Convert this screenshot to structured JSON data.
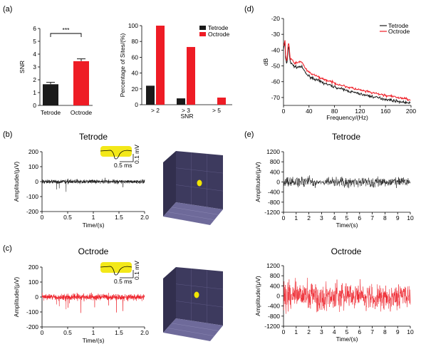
{
  "colors": {
    "tetrode": "#1a1a1a",
    "octrode": "#ee1c25",
    "spike": "#f2e600",
    "cube": "#3d3a5e",
    "cube_floor": "#6e6a9a"
  },
  "panels": {
    "a": "(a)",
    "b": "(b)",
    "c": "(c)",
    "d": "(d)",
    "e": "(e)"
  },
  "chart_data": [
    {
      "id": "a-left",
      "type": "bar",
      "categories": [
        "Tetrode",
        "Octrode"
      ],
      "values": [
        1.65,
        3.45
      ],
      "errors": [
        0.15,
        0.18
      ],
      "ylabel": "SNR",
      "ylim": [
        0,
        6
      ],
      "yticks": [
        0,
        1,
        2,
        3,
        4,
        5,
        6
      ],
      "significance": "***"
    },
    {
      "id": "a-right",
      "type": "bar",
      "categories": [
        "> 2",
        "> 3",
        "> 5"
      ],
      "series": [
        {
          "name": "Tetrode",
          "values": [
            24,
            8,
            0
          ]
        },
        {
          "name": "Octrode",
          "values": [
            100,
            73,
            9
          ]
        }
      ],
      "xlabel": "SNR",
      "ylabel": "Percentage of Sites/(%)",
      "ylim": [
        0,
        100
      ],
      "yticks": [
        0,
        20,
        40,
        60,
        80,
        100
      ],
      "legend": "top-right"
    },
    {
      "id": "d",
      "type": "line",
      "series": [
        {
          "name": "Tetrode"
        },
        {
          "name": "Octrode"
        }
      ],
      "xlabel": "Frequency/(Hz)",
      "ylabel": "dB",
      "xlim": [
        0,
        200
      ],
      "ylim": [
        -75,
        -20
      ],
      "xticks": [
        0,
        40,
        80,
        120,
        160,
        200
      ],
      "yticks": [
        -20,
        -30,
        -40,
        -50,
        -60,
        -70
      ],
      "legend": "top-right"
    },
    {
      "id": "b",
      "type": "line",
      "title": "Tetrode",
      "xlabel": "Time/(s)",
      "ylabel": "Amplitude/(μV)",
      "xlim": [
        0,
        2
      ],
      "ylim": [
        -200,
        200
      ],
      "xticks": [
        "0",
        "0.5",
        "1",
        "1.5",
        "2.0"
      ],
      "yticks": [
        200,
        100,
        0,
        -100,
        -200
      ],
      "scalebar": {
        "time": "0.5 ms",
        "amp": "0.1 mV"
      }
    },
    {
      "id": "c",
      "type": "line",
      "title": "Octrode",
      "xlabel": "Time/(s)",
      "ylabel": "Amplitude/(μV)",
      "xlim": [
        0,
        2
      ],
      "ylim": [
        -200,
        200
      ],
      "xticks": [
        "0",
        "0.5",
        "1",
        "1.5",
        "2.0"
      ],
      "yticks": [
        200,
        100,
        0,
        -100,
        -200
      ],
      "scalebar": {
        "time": "0.5 ms",
        "amp": "0.1 mV"
      }
    },
    {
      "id": "e-top",
      "type": "line",
      "title": "Tetrode",
      "xlabel": "Time/(s)",
      "ylabel": "Amplitude/(μV)",
      "xlim": [
        0,
        10
      ],
      "ylim": [
        -1200,
        1200
      ],
      "xticks": [
        "0",
        "1",
        "2",
        "3",
        "4",
        "5",
        "6",
        "7",
        "8",
        "9",
        "10"
      ],
      "yticks": [
        1200,
        800,
        400,
        0,
        -400,
        -800,
        -1200
      ]
    },
    {
      "id": "e-bottom",
      "type": "line",
      "title": "Octrode",
      "xlabel": "Time/(s)",
      "ylabel": "Amplitude/(μV)",
      "xlim": [
        0,
        10
      ],
      "ylim": [
        -1200,
        1200
      ],
      "xticks": [
        "0",
        "1",
        "2",
        "3",
        "4",
        "5",
        "6",
        "7",
        "8",
        "9",
        "10"
      ],
      "yticks": [
        1200,
        800,
        400,
        0,
        -400,
        -800,
        -1200
      ]
    }
  ]
}
